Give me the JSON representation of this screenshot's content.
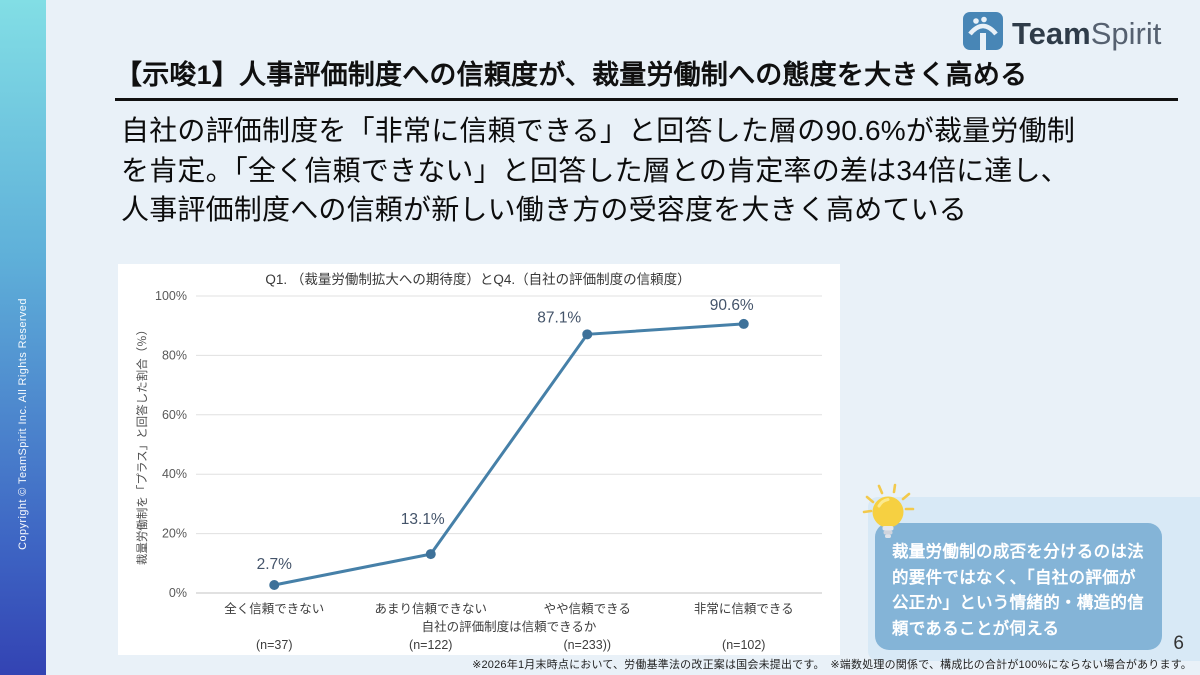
{
  "page": {
    "background": "#e9f1f8",
    "page_number": "6"
  },
  "sidebar": {
    "copyright": "Copyright © TeamSpirit Inc. All Rights Reserved",
    "gradient_top": "#82dee5",
    "gradient_bottom": "#3343b3"
  },
  "logo": {
    "team": "Team",
    "spirit": "Spirit",
    "icon_color": "#4886b6"
  },
  "title": {
    "text": "【示唆1】人事評価制度への信頼度が、裁量労働制への態度を大きく高める"
  },
  "summary": {
    "text": "自社の評価制度を「非常に信頼できる」と回答した層の90.6%が裁量労働制\nを肯定。「全く信頼できない」と回答した層との肯定率の差は34倍に達し、\n人事評価制度への信頼が新しい働き方の受容度を大きく高めている"
  },
  "chart_data": {
    "type": "line",
    "title": "Q1. （裁量労働制拡大への期待度）とQ4.（自社の評価制度の信頼度）",
    "categories": [
      "全く信頼できない",
      "あまり信頼できない",
      "やや信頼できる",
      "非常に信頼できる"
    ],
    "n_labels": [
      "(n=37)",
      "(n=122)",
      "(n=233))",
      "(n=102)"
    ],
    "values": [
      2.7,
      13.1,
      87.1,
      90.6
    ],
    "value_labels": [
      "2.7%",
      "13.1%",
      "87.1%",
      "90.6%"
    ],
    "xlabel": "自社の評価制度は信頼できるか",
    "ylabel": "裁量労働制を「プラス」と回答した割合（％）",
    "ylim": [
      0,
      100
    ],
    "yticks": [
      0,
      20,
      40,
      60,
      80,
      100
    ],
    "ytick_labels": [
      "0%",
      "20%",
      "40%",
      "60%",
      "80%",
      "100%"
    ],
    "grid": true,
    "legend": "none",
    "line_color": "#4680a8",
    "marker_color": "#3e7199",
    "label_color": "#44546a",
    "axis_text_color": "#4d4d4d",
    "gridline_color": "#e0e0e0"
  },
  "callout": {
    "text": "裁量労働制の成否を分けるのは法的要件ではなく、「自社の評価が公正か」という情緒的・構造的信頼であることが伺える",
    "bg": "#84b4d7",
    "icon": "lightbulb-icon"
  },
  "footnote": {
    "text": "※2026年1月末時点において、労働基準法の改正案は国会未提出です。　※端数処理の関係で、構成比の合計が100%にならない場合があります。"
  }
}
